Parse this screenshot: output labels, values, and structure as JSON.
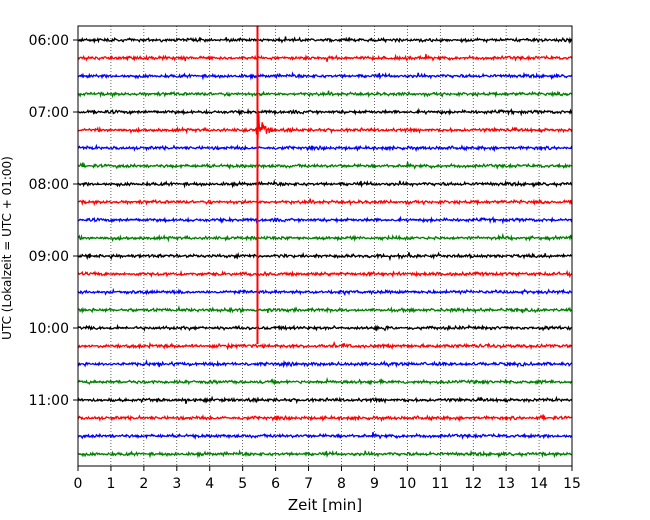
{
  "chart_data": {
    "type": "line",
    "title": "",
    "xlabel": "Zeit  [min]",
    "ylabel": "UTC (Lokalzeit = UTC + 01:00)",
    "xlim": [
      0,
      15
    ],
    "x_ticks": [
      0,
      1,
      2,
      3,
      4,
      5,
      6,
      7,
      8,
      9,
      10,
      11,
      12,
      13,
      14,
      15
    ],
    "x_tick_labels": [
      "0",
      "1",
      "2",
      "3",
      "4",
      "5",
      "6",
      "7",
      "8",
      "9",
      "10",
      "11",
      "12",
      "13",
      "14",
      "15"
    ],
    "y_tick_labels": [
      "06:00",
      "07:00",
      "08:00",
      "09:00",
      "10:00",
      "11:00"
    ],
    "row_minutes": 15,
    "row_start_times": [
      "06:00",
      "06:15",
      "06:30",
      "06:45",
      "07:00",
      "07:15",
      "07:30",
      "07:45",
      "08:00",
      "08:15",
      "08:30",
      "08:45",
      "09:00",
      "09:15",
      "09:30",
      "09:45",
      "10:00",
      "10:15",
      "10:30",
      "10:45",
      "11:00",
      "11:15",
      "11:30",
      "11:45"
    ],
    "row_color_cycle": [
      "#000000",
      "#ff0000",
      "#0000ff",
      "#008000"
    ],
    "grid": "vertical dotted",
    "event": {
      "row_time": "07:15",
      "onset_min": 5.42,
      "peak_min": 5.5,
      "decay_end_min": 6.1
    },
    "spike_line": {
      "x_min": 5.45,
      "color": "#ff0000"
    }
  }
}
